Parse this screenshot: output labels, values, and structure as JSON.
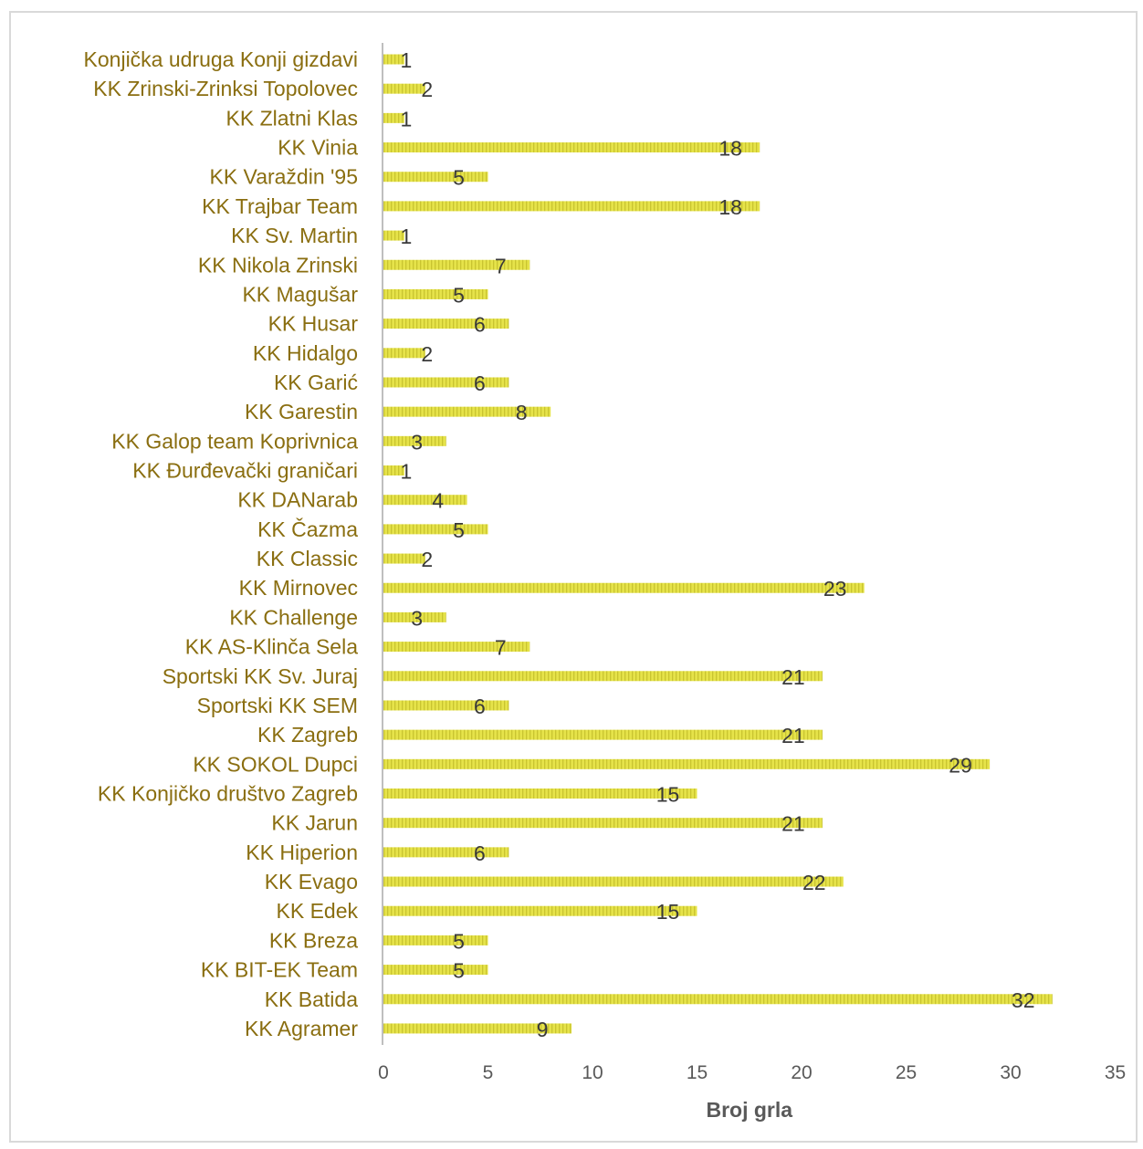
{
  "chart_data": {
    "type": "bar",
    "orientation": "horizontal",
    "categories": [
      "Konjička udruga Konji gizdavi",
      "KK Zrinski-Zrinksi Topolovec",
      "KK Zlatni Klas",
      "KK Vinia",
      "KK Varaždin '95",
      "KK Trajbar Team",
      "KK Sv. Martin",
      "KK Nikola Zrinski",
      "KK Magušar",
      "KK Husar",
      "KK Hidalgo",
      "KK Garić",
      "KK Garestin",
      "KK Galop team Koprivnica",
      "KK Đurđevački graničari",
      "KK DANarab",
      "KK Čazma",
      "KK Classic",
      "KK Mirnovec",
      "KK Challenge",
      "KK AS-Klinča Sela",
      "Sportski KK Sv. Juraj",
      "Sportski KK SEM",
      "KK Zagreb",
      "KK SOKOL Dupci",
      "KK Konjičko društvo Zagreb",
      "KK Jarun",
      "KK Hiperion",
      "KK Evago",
      "KK Edek",
      "KK Breza",
      "KK BIT-EK Team",
      "KK Batida ",
      "KK Agramer"
    ],
    "values": [
      1,
      2,
      1,
      18,
      5,
      18,
      1,
      7,
      5,
      6,
      2,
      6,
      8,
      3,
      1,
      4,
      5,
      2,
      23,
      3,
      7,
      21,
      6,
      21,
      29,
      15,
      21,
      6,
      22,
      15,
      5,
      5,
      32,
      9
    ],
    "xlabel": "Broj grla",
    "ylabel": "",
    "xlim": [
      0,
      35
    ],
    "x_ticks": [
      "0",
      "5",
      "10",
      "15",
      "20",
      "25",
      "30",
      "35"
    ],
    "grid": false,
    "legend": "none",
    "data_labels": true,
    "colors": {
      "bar": "#e6e34a",
      "bar_stripe": "#c9c430",
      "category_text": "#8a6e10",
      "value_text": "#3a3a3a",
      "axis_line": "#bfbfbf",
      "tick_text": "#595959"
    }
  }
}
